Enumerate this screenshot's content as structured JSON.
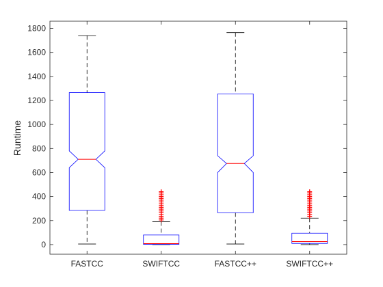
{
  "chart_data": {
    "type": "boxplot",
    "title": "",
    "xlabel": "",
    "ylabel": "Runtime",
    "ylim": [
      -80,
      1860
    ],
    "yticks": [
      0,
      200,
      400,
      600,
      800,
      1000,
      1200,
      1400,
      1600,
      1800
    ],
    "grid": false,
    "notched": true,
    "colors": {
      "box": "#0000ff",
      "median": "#ff0000",
      "whisker": "#000000",
      "outlier": "#ff0000",
      "axis": "#262626"
    },
    "categories": [
      "FASTCC",
      "SWIFTCC",
      "FASTCC++",
      "SWIFTCC++"
    ],
    "boxes": [
      {
        "category": "FASTCC",
        "whisker_low": 5,
        "q1": 285,
        "median": 710,
        "q3": 1265,
        "whisker_high": 1740,
        "notch_low": 640,
        "notch_high": 780,
        "outliers": []
      },
      {
        "category": "SWIFTCC",
        "whisker_low": 0,
        "q1": 2,
        "median": 8,
        "q3": 80,
        "whisker_high": 190,
        "notch_low": 5,
        "notch_high": 11,
        "outliers": [
          205,
          220,
          235,
          250,
          265,
          280,
          295,
          310,
          325,
          340,
          355,
          370,
          385,
          400,
          415,
          430,
          440
        ]
      },
      {
        "category": "FASTCC++",
        "whisker_low": 5,
        "q1": 265,
        "median": 675,
        "q3": 1255,
        "whisker_high": 1765,
        "notch_low": 600,
        "notch_high": 740,
        "outliers": []
      },
      {
        "category": "SWIFTCC++",
        "whisker_low": 0,
        "q1": 10,
        "median": 25,
        "q3": 95,
        "whisker_high": 220,
        "notch_low": 18,
        "notch_high": 32,
        "outliers": [
          235,
          250,
          265,
          280,
          295,
          310,
          325,
          340,
          355,
          370,
          385,
          400,
          415,
          430,
          440
        ]
      }
    ]
  }
}
